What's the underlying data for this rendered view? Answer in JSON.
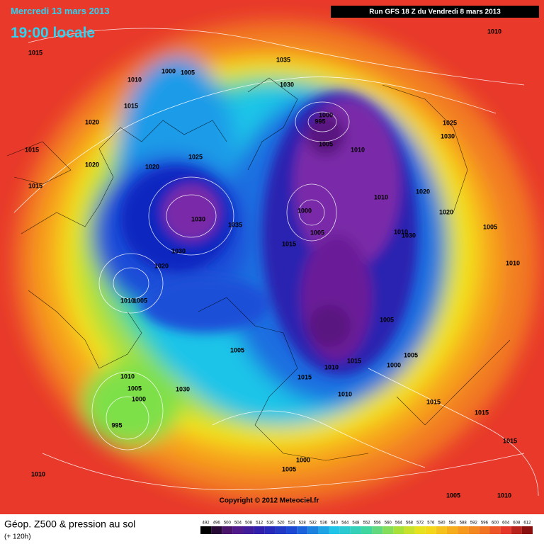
{
  "header": {
    "date": "Mercredi 13 mars 2013",
    "time": "19:00 locale",
    "run": "Run GFS 18 Z du Vendredi 8 mars 2013"
  },
  "map": {
    "isobar_labels": [
      1015,
      1010,
      1000,
      1005,
      1015,
      1020,
      1015,
      1020,
      1015,
      1020,
      1025,
      1030,
      1035,
      1030,
      1020,
      1010,
      1005,
      1035,
      1030,
      1000,
      995,
      1005,
      1010,
      1025,
      1030,
      1020,
      1020,
      1010,
      1000,
      1005,
      1015,
      1010,
      1030,
      1005,
      1010,
      1005,
      1005,
      1000,
      1015,
      1010,
      1015,
      1010,
      1005,
      1010,
      1005,
      1000,
      1030,
      995,
      1015,
      1015,
      1015,
      1000,
      1005,
      1010,
      1005,
      1010,
      1010
    ],
    "copyright": "Copyright © 2012 Meteociel.fr"
  },
  "legend": {
    "title": "Géop. Z500 & pression au sol",
    "subtitle": "(+ 120h)",
    "scale": [
      492,
      496,
      500,
      504,
      508,
      512,
      516,
      520,
      524,
      528,
      532,
      536,
      540,
      544,
      548,
      552,
      556,
      560,
      564,
      568,
      572,
      576,
      580,
      584,
      588,
      592,
      596,
      600,
      604,
      608,
      612
    ]
  }
}
